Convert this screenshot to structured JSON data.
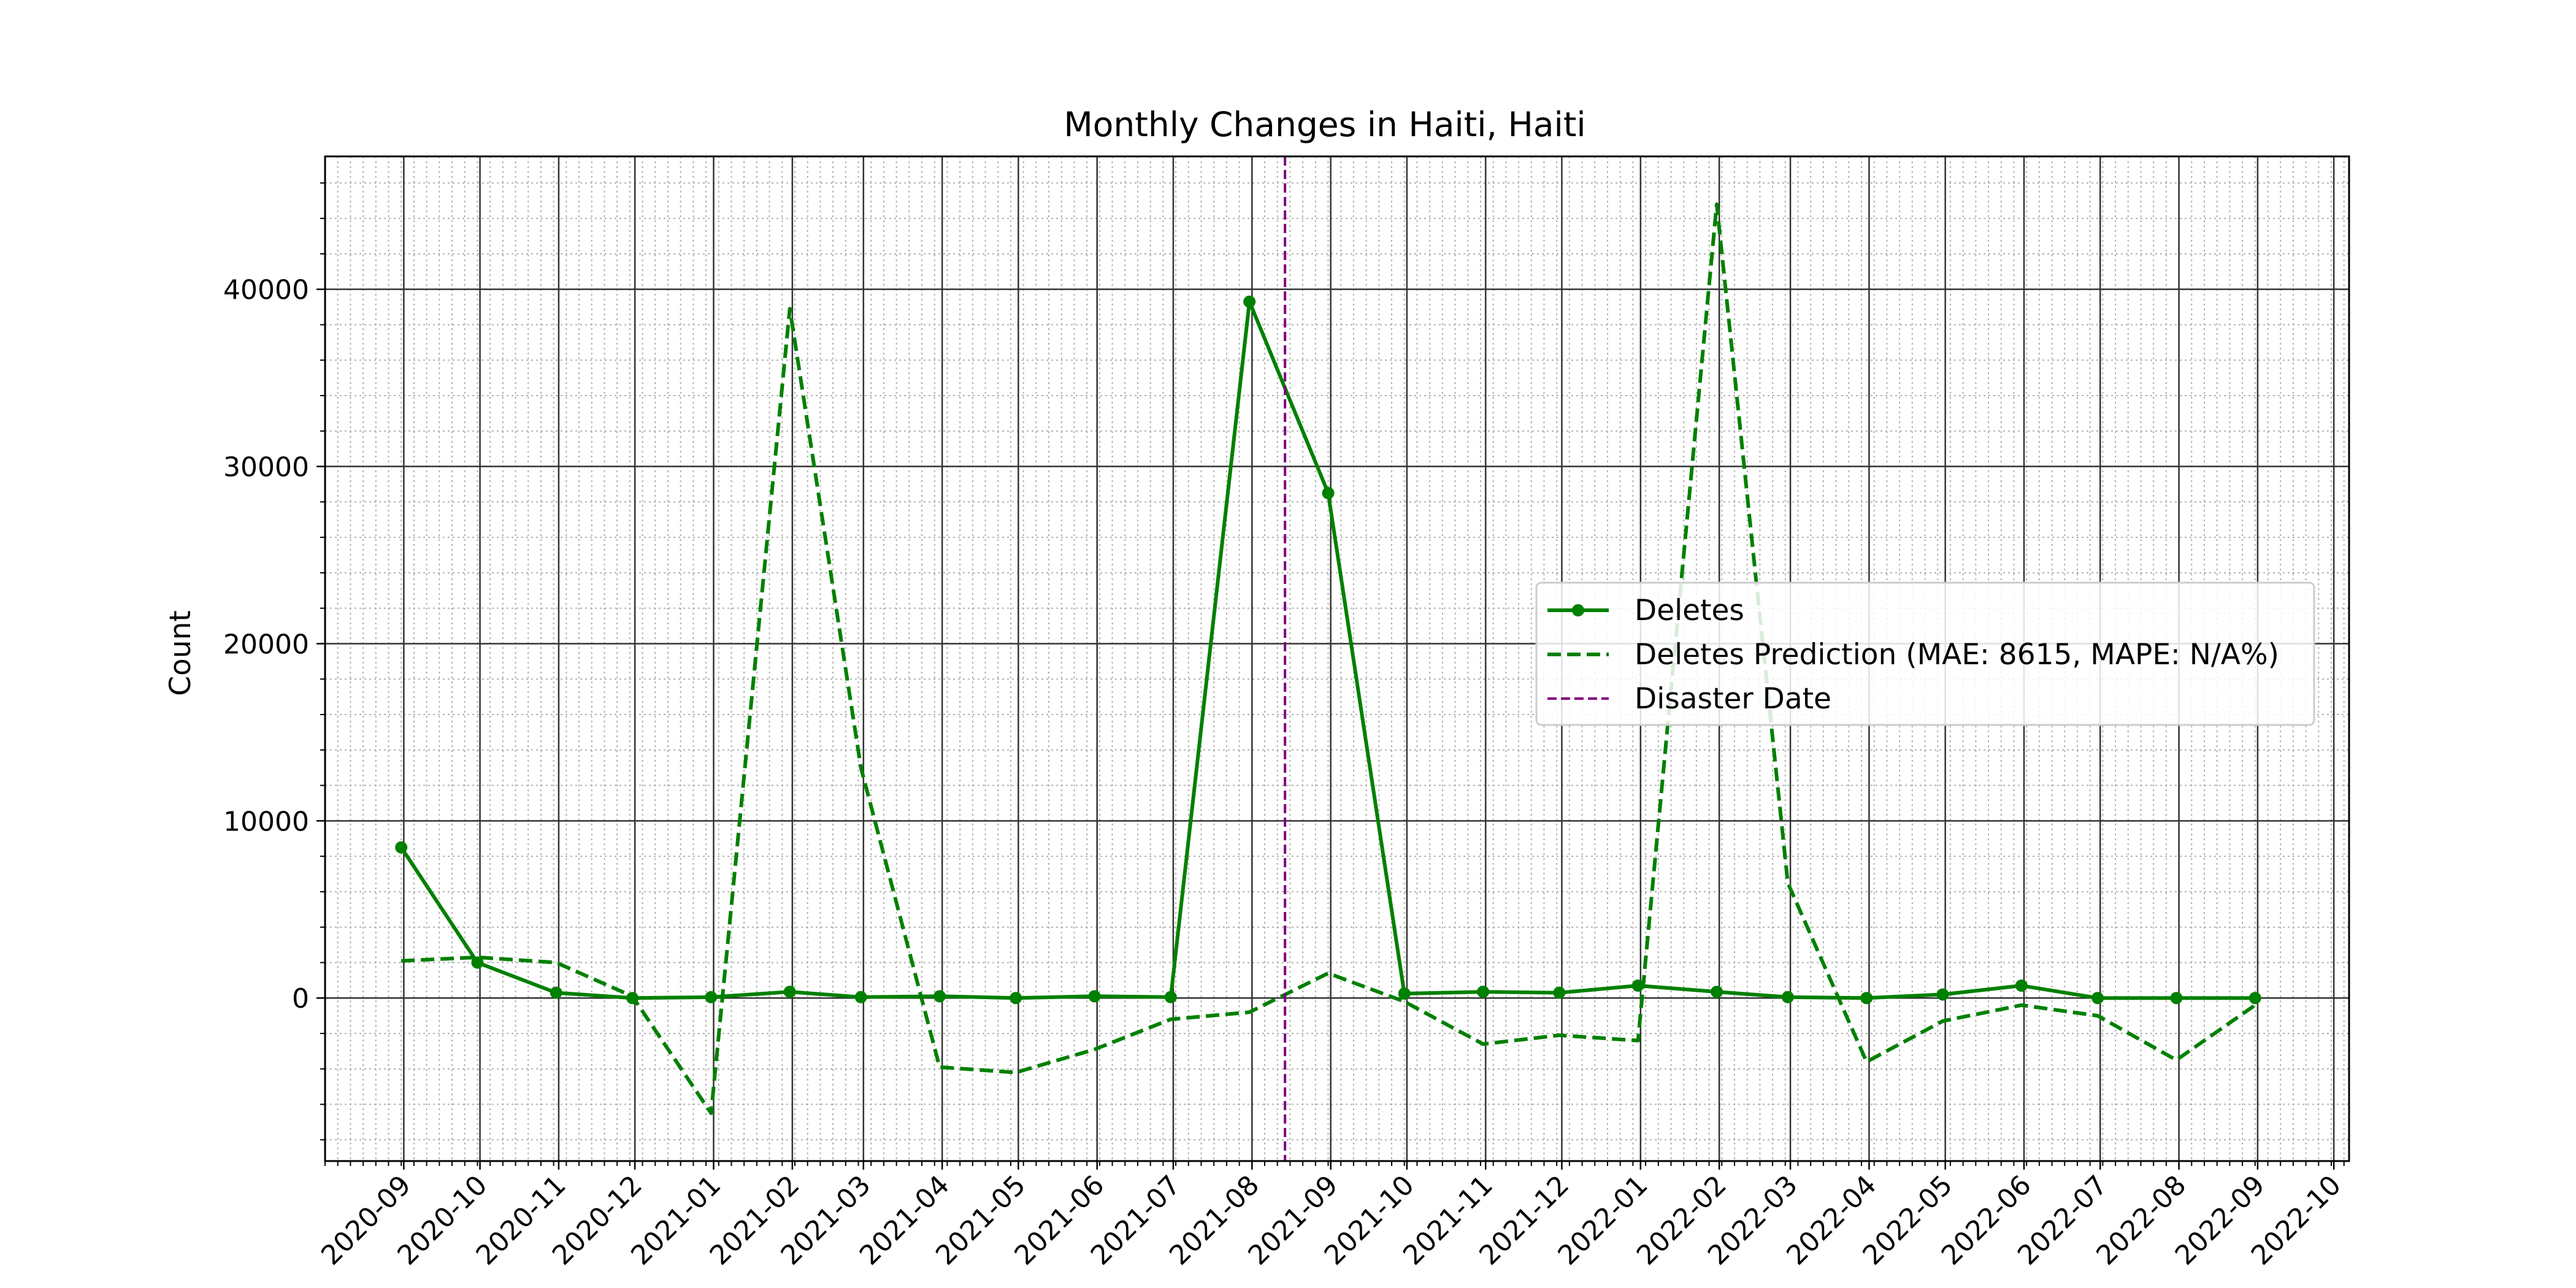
{
  "chart_data": {
    "type": "line",
    "title": "Monthly Changes in Haiti, Haiti",
    "xlabel": "",
    "ylabel": "Count",
    "x_tick_labels": [
      "2020-09",
      "2020-10",
      "2020-11",
      "2020-12",
      "2021-01",
      "2021-02",
      "2021-03",
      "2021-04",
      "2021-05",
      "2021-06",
      "2021-07",
      "2021-08",
      "2021-09",
      "2021-10",
      "2021-11",
      "2021-12",
      "2022-01",
      "2022-02",
      "2022-03",
      "2022-04",
      "2022-05",
      "2022-06",
      "2022-07",
      "2022-08",
      "2022-09",
      "2022-10"
    ],
    "y_tick_labels": [
      "0",
      "10000",
      "20000",
      "30000",
      "40000"
    ],
    "xlim": [
      "2020-08-01",
      "2022-10-07"
    ],
    "ylim": [
      -9200,
      47500
    ],
    "grid": {
      "major": true,
      "minor": true
    },
    "legend_position": "center-right",
    "series": [
      {
        "name": "Deletes",
        "style": "solid",
        "marker": "circle",
        "color": "#008000",
        "x": [
          "2020-08-31",
          "2020-09-30",
          "2020-10-31",
          "2020-11-30",
          "2020-12-31",
          "2021-01-31",
          "2021-02-28",
          "2021-03-31",
          "2021-04-30",
          "2021-05-31",
          "2021-06-30",
          "2021-07-31",
          "2021-08-31",
          "2021-09-30",
          "2021-10-31",
          "2021-11-30",
          "2021-12-31",
          "2022-01-31",
          "2022-02-28",
          "2022-03-31",
          "2022-04-30",
          "2022-05-31",
          "2022-06-30",
          "2022-07-31",
          "2022-08-31"
        ],
        "y": [
          8500,
          2000,
          300,
          0,
          50,
          350,
          50,
          100,
          0,
          100,
          50,
          39300,
          28500,
          250,
          350,
          300,
          700,
          350,
          50,
          0,
          200,
          700,
          0,
          0,
          0
        ]
      },
      {
        "name": "Deletes Prediction (MAE: 8615, MAPE: N/A%)",
        "style": "dashed",
        "marker": "none",
        "color": "#008000",
        "x": [
          "2020-08-31",
          "2020-09-30",
          "2020-10-31",
          "2020-11-30",
          "2020-12-31",
          "2021-01-31",
          "2021-02-28",
          "2021-03-31",
          "2021-04-30",
          "2021-05-31",
          "2021-06-30",
          "2021-07-31",
          "2021-08-31",
          "2021-09-30",
          "2021-10-31",
          "2021-11-30",
          "2021-12-31",
          "2022-01-31",
          "2022-02-28",
          "2022-03-31",
          "2022-04-30",
          "2022-05-31",
          "2022-06-30",
          "2022-07-31",
          "2022-08-31"
        ],
        "y": [
          2100,
          2300,
          2000,
          100,
          -6500,
          38900,
          13000,
          -3900,
          -4200,
          -2900,
          -1200,
          -800,
          1400,
          -200,
          -2600,
          -2100,
          -2400,
          44800,
          6500,
          -3600,
          -1300,
          -400,
          -1000,
          -3500,
          -400
        ]
      }
    ],
    "vlines": [
      {
        "name": "Disaster Date",
        "x": "2021-08-14",
        "style": "dashed",
        "color": "#800080"
      }
    ]
  }
}
